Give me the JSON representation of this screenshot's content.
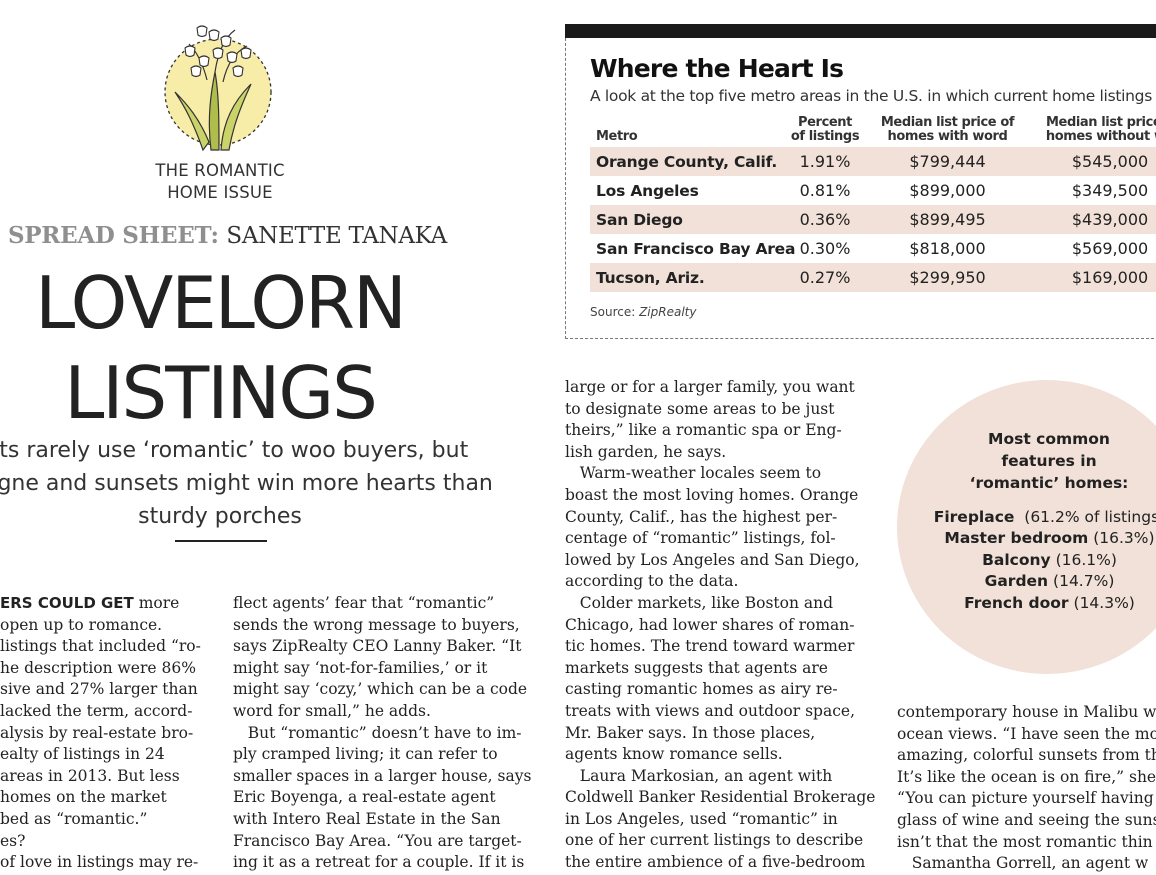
{
  "masthead": {
    "issue_line1": "THE ROMANTIC",
    "issue_line2": "HOME ISSUE"
  },
  "byline": {
    "kicker": "SPREAD SHEET:",
    "author": "SANETTE TANAKA"
  },
  "headline": {
    "line1": "LOVELORN",
    "line2": "LISTINGS"
  },
  "deck": {
    "line1": "ents rarely use ‘romantic’ to woo buyers, but",
    "line2": "pagne and sunsets might win more hearts than",
    "line3": "sturdy porches"
  },
  "column1": {
    "lead": "ERS COULD GET",
    "lines": [
      " more",
      "open up to romance.",
      "listings that included “ro-",
      "he description were 86%",
      "sive and 27% larger than",
      " lacked the term, accord-",
      "alysis by real-estate bro-",
      "ealty of listings in 24",
      " areas in 2013. But less",
      "homes on the market",
      "bed as “romantic.”",
      "es?",
      "of love in listings may re-"
    ]
  },
  "column2": {
    "lines": [
      "flect agents’ fear that “romantic”",
      "sends the wrong message to buyers,",
      "says ZipRealty CEO Lanny Baker. “It",
      "might say ‘not-for-families,’ or it",
      "might say ‘cozy,’ which can be a code",
      "word for small,” he adds.",
      "   But “romantic” doesn’t have to im-",
      "ply cramped living; it can refer to",
      "smaller spaces in a larger house, says",
      "Eric Boyenga, a real-estate agent",
      "with Intero Real Estate in the San",
      "Francisco Bay Area. “You are target-",
      "ing it as a retreat for a couple. If it is"
    ]
  },
  "column3": {
    "lines": [
      "large or for a larger family, you want",
      "to designate some areas to be just",
      "theirs,” like a romantic spa or Eng-",
      "lish garden, he says.",
      "   Warm-weather locales seem to",
      "boast the most loving homes. Orange",
      "County, Calif., has the highest per-",
      "centage of “romantic” listings, fol-",
      "lowed by Los Angeles and San Diego,",
      "according to the data.",
      "   Colder markets, like Boston and",
      "Chicago, had lower shares of roman-",
      "tic homes. The trend toward warmer",
      "markets suggests that agents are",
      "casting romantic homes as airy re-",
      "treats with views and outdoor space,",
      "Mr. Baker says. In those places,",
      "agents know romance sells.",
      "   Laura Markosian, an agent with",
      "Coldwell Banker Residential Brokerage",
      "in Los Angeles, used “romantic” in",
      "one of her current listings to describe",
      "the entire ambience of a five-bedroom"
    ]
  },
  "column4": {
    "lines": [
      "contemporary house in Malibu w",
      "ocean views. “I have seen the mo",
      "amazing, colorful sunsets from th",
      "It’s like the ocean is on fire,” she",
      "“You can picture yourself having",
      "glass of wine and seeing the suns",
      "isn’t that the most romantic thin",
      "   Samantha Gorrell, an agent w"
    ]
  },
  "table": {
    "title": "Where the Heart Is",
    "subtitle": "A look at the top five metro areas in the U.S. in which current home listings u",
    "headers": {
      "metro": "Metro",
      "pct_1": "Percent",
      "pct_2": "of listings",
      "with_1": "Median list price of",
      "with_2": "homes with word",
      "without_1": "Median list price o",
      "without_2": "homes without wo"
    },
    "rows": [
      {
        "metro": "Orange County, Calif.",
        "pct": "1.91%",
        "with": "$799,444",
        "without": "$545,000"
      },
      {
        "metro": "Los Angeles",
        "pct": "0.81%",
        "with": "$899,000",
        "without": "$349,500"
      },
      {
        "metro": "San Diego",
        "pct": "0.36%",
        "with": "$899,495",
        "without": "$439,000"
      },
      {
        "metro": "San Francisco Bay Area",
        "pct": "0.30%",
        "with": "$818,000",
        "without": "$569,000"
      },
      {
        "metro": "Tucson, Ariz.",
        "pct": "0.27%",
        "with": "$299,950",
        "without": "$169,000"
      }
    ],
    "source_label": "Source: ",
    "source_name": "ZipRealty",
    "row_shade": "#f1e1d8"
  },
  "features": {
    "title_line1": "Most common",
    "title_line2": "features in",
    "title_line3": "‘romantic’ homes:",
    "items": [
      {
        "name": "Fireplace",
        "pct": "(61.2% of listings)"
      },
      {
        "name": "Master bedroom",
        "pct": "(16.3%)"
      },
      {
        "name": "Balcony",
        "pct": "(16.1%)"
      },
      {
        "name": "Garden",
        "pct": "(14.7%)"
      },
      {
        "name": "French door",
        "pct": "(14.3%)"
      }
    ],
    "circle_color": "#f1e1d8"
  }
}
